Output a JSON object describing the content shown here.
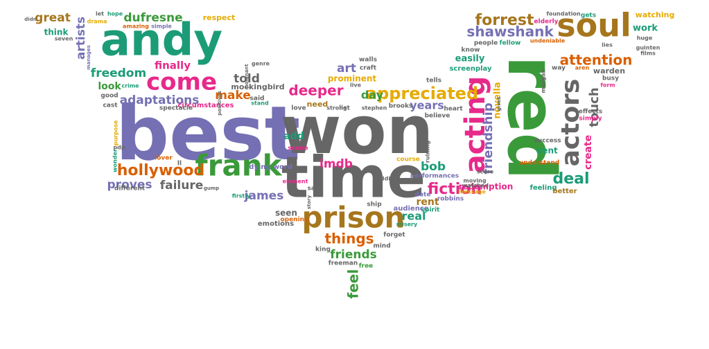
{
  "palette": {
    "green": "#3a9a3a",
    "teal": "#1b9c77",
    "purple": "#7570b3",
    "gray": "#666666",
    "magenta": "#e7298a",
    "gold": "#a6761d",
    "yellow": "#e6ab02",
    "orange": "#d95f02"
  },
  "words": [
    {
      "text": "best",
      "c": "purple"
    },
    {
      "text": "won",
      "c": "gray"
    },
    {
      "text": "time",
      "c": "gray"
    },
    {
      "text": "red",
      "c": "green"
    },
    {
      "text": "andy",
      "c": "teal"
    },
    {
      "text": "soul",
      "c": "gold"
    },
    {
      "text": "prison",
      "c": "gold"
    },
    {
      "text": "frank",
      "c": "green"
    },
    {
      "text": "acting",
      "c": "magenta"
    },
    {
      "text": "actors",
      "c": "gray"
    },
    {
      "text": "come",
      "c": "magenta"
    },
    {
      "text": "appreciated",
      "c": "yellow"
    },
    {
      "text": "forrest",
      "c": "gold"
    },
    {
      "text": "shawshank",
      "c": "purple"
    },
    {
      "text": "hollywood",
      "c": "orange"
    },
    {
      "text": "deal",
      "c": "teal"
    },
    {
      "text": "fiction",
      "c": "magenta"
    },
    {
      "text": "adaptations",
      "c": "purple"
    },
    {
      "text": "freedom",
      "c": "teal"
    },
    {
      "text": "things",
      "c": "orange"
    },
    {
      "text": "deeper",
      "c": "magenta"
    },
    {
      "text": "attention",
      "c": "orange"
    },
    {
      "text": "dufresne",
      "c": "green"
    },
    {
      "text": "friendship",
      "c": "purple"
    },
    {
      "text": "great",
      "c": "gold"
    },
    {
      "text": "artists",
      "c": "purple"
    },
    {
      "text": "touch",
      "c": "gray"
    },
    {
      "text": "failure",
      "c": "gray"
    },
    {
      "text": "proves",
      "c": "purple"
    },
    {
      "text": "make",
      "c": "orange"
    },
    {
      "text": "told",
      "c": "gray"
    },
    {
      "text": "bob",
      "c": "teal"
    },
    {
      "text": "art",
      "c": "purple"
    },
    {
      "text": "finally",
      "c": "magenta"
    },
    {
      "text": "friends",
      "c": "green"
    },
    {
      "text": "feel",
      "c": "green"
    },
    {
      "text": "years",
      "c": "purple"
    },
    {
      "text": "day",
      "c": "green"
    },
    {
      "text": "look",
      "c": "green"
    },
    {
      "text": "seen",
      "c": "gray"
    },
    {
      "text": "real",
      "c": "teal"
    },
    {
      "text": "james",
      "c": "purple"
    },
    {
      "text": "rent",
      "c": "gold"
    },
    {
      "text": "imdb",
      "c": "magenta"
    },
    {
      "text": "add",
      "c": "teal"
    },
    {
      "text": "novella",
      "c": "yellow"
    },
    {
      "text": "create",
      "c": "magenta"
    },
    {
      "text": "work",
      "c": "teal"
    },
    {
      "text": "watching",
      "c": "yellow"
    },
    {
      "text": "easily",
      "c": "teal"
    },
    {
      "text": "prominent",
      "c": "yellow"
    },
    {
      "text": "redemption",
      "c": "magenta"
    },
    {
      "text": "mockingbird",
      "c": "gray"
    },
    {
      "text": "respect",
      "c": "yellow"
    },
    {
      "text": "tells",
      "c": "gray"
    },
    {
      "text": "sent",
      "c": "teal"
    },
    {
      "text": "think",
      "c": "teal"
    },
    {
      "text": "need",
      "c": "gold"
    },
    {
      "text": "warden",
      "c": "gray"
    },
    {
      "text": "course",
      "c": "yellow"
    },
    {
      "text": "screenplay",
      "c": "teal"
    },
    {
      "text": "circumstances",
      "c": "magenta"
    },
    {
      "text": "elderly",
      "c": "magenta"
    },
    {
      "text": "spectacle",
      "c": "gray"
    },
    {
      "text": "performances",
      "c": "purple"
    },
    {
      "text": "different",
      "c": "gray"
    },
    {
      "text": "dying",
      "c": "purple"
    },
    {
      "text": "word",
      "c": "purple"
    },
    {
      "text": "audience",
      "c": "purple"
    },
    {
      "text": "forget",
      "c": "gray"
    },
    {
      "text": "freeman",
      "c": "gray"
    },
    {
      "text": "free",
      "c": "green"
    },
    {
      "text": "emotions",
      "c": "gray"
    },
    {
      "text": "opening",
      "c": "orange"
    },
    {
      "text": "spirit",
      "c": "teal"
    },
    {
      "text": "date",
      "c": "purple"
    },
    {
      "text": "robbins",
      "c": "purple"
    },
    {
      "text": "message",
      "c": "yellow"
    },
    {
      "text": "feeling",
      "c": "teal"
    },
    {
      "text": "better",
      "c": "gold"
    },
    {
      "text": "understand",
      "c": "orange"
    },
    {
      "text": "success",
      "c": "gray"
    },
    {
      "text": "effects",
      "c": "gray"
    },
    {
      "text": "simply",
      "c": "magenta"
    },
    {
      "text": "heart",
      "c": "gray"
    },
    {
      "text": "believe",
      "c": "gray"
    },
    {
      "text": "brooks",
      "c": "gray"
    },
    {
      "text": "love",
      "c": "gray"
    },
    {
      "text": "said",
      "c": "gray"
    },
    {
      "text": "cast",
      "c": "gray"
    },
    {
      "text": "good",
      "c": "gray"
    },
    {
      "text": "lover",
      "c": "orange"
    },
    {
      "text": "scene",
      "c": "magenta"
    },
    {
      "text": "element",
      "c": "magenta"
    },
    {
      "text": "say",
      "c": "gray"
    },
    {
      "text": "ship",
      "c": "gray"
    },
    {
      "text": "misery",
      "c": "teal"
    },
    {
      "text": "mind",
      "c": "gray"
    },
    {
      "text": "king",
      "c": "gray"
    },
    {
      "text": "firstly",
      "c": "teal"
    },
    {
      "text": "stand",
      "c": "teal"
    },
    {
      "text": "genre",
      "c": "gray"
    },
    {
      "text": "crime",
      "c": "teal"
    },
    {
      "text": "walls",
      "c": "gray"
    },
    {
      "text": "craft",
      "c": "gray"
    },
    {
      "text": "people",
      "c": "gray"
    },
    {
      "text": "fellow",
      "c": "teal"
    },
    {
      "text": "know",
      "c": "gray"
    },
    {
      "text": "undeniable",
      "c": "orange"
    },
    {
      "text": "foundation",
      "c": "gray"
    },
    {
      "text": "gets",
      "c": "teal"
    },
    {
      "text": "lies",
      "c": "gray"
    },
    {
      "text": "huge",
      "c": "gray"
    },
    {
      "text": "way",
      "c": "gray"
    },
    {
      "text": "aren",
      "c": "orange"
    },
    {
      "text": "busy",
      "c": "gray"
    },
    {
      "text": "form",
      "c": "magenta"
    },
    {
      "text": "films",
      "c": "gray"
    },
    {
      "text": "list",
      "c": "gray"
    },
    {
      "text": "stephen",
      "c": "gray"
    },
    {
      "text": "strong",
      "c": "gray"
    },
    {
      "text": "hope",
      "c": "teal"
    },
    {
      "text": "let",
      "c": "gray"
    },
    {
      "text": "drama",
      "c": "yellow"
    },
    {
      "text": "amazing",
      "c": "orange"
    },
    {
      "text": "simple",
      "c": "purple"
    },
    {
      "text": "seven",
      "c": "gray"
    },
    {
      "text": "didn",
      "c": "gray"
    },
    {
      "text": "manages",
      "c": "purple"
    },
    {
      "text": "live",
      "c": "gray"
    },
    {
      "text": "moving",
      "c": "gray"
    },
    {
      "text": "watched",
      "c": "gray"
    },
    {
      "text": "redding",
      "c": "gray"
    },
    {
      "text": "score",
      "c": "gray"
    },
    {
      "text": "gives",
      "c": "gray"
    },
    {
      "text": "ll",
      "c": "gray"
    },
    {
      "text": "pdp",
      "c": "gray"
    },
    {
      "text": "purpose",
      "c": "yellow"
    },
    {
      "text": "wonder",
      "c": "teal"
    },
    {
      "text": "morgan",
      "c": "gray"
    },
    {
      "text": "gump",
      "c": "gray"
    },
    {
      "text": "poignant",
      "c": "gray"
    },
    {
      "text": "positives",
      "c": "gray"
    },
    {
      "text": "guinten",
      "c": "gray"
    },
    {
      "text": "ruining",
      "c": "gray"
    },
    {
      "text": "story",
      "c": "gray"
    }
  ]
}
